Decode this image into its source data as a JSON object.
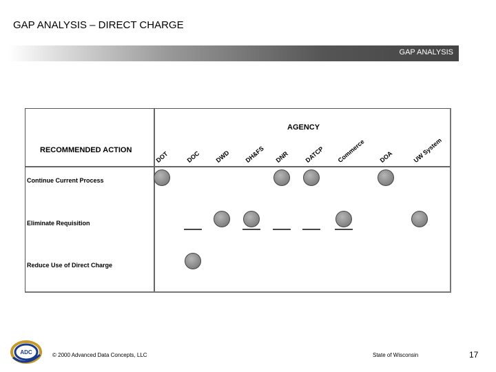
{
  "header": {
    "title": "GAP ANALYSIS – DIRECT CHARGE"
  },
  "banner": {
    "label": "GAP ANALYSIS"
  },
  "matrix": {
    "agency_title": "AGENCY",
    "action_title": "RECOMMENDED ACTION",
    "agencies": [
      "DOT",
      "DOC",
      "DWD",
      "DH&FS",
      "DNR",
      "DATCP",
      "Commerce",
      "DOA",
      "UW System"
    ],
    "rows": [
      {
        "label": "Continue Current Process",
        "marks": [
          "dot",
          "",
          "",
          "",
          "dot",
          "dot",
          "",
          "dot",
          ""
        ]
      },
      {
        "label": "Eliminate Requisition",
        "marks": [
          "",
          "dash",
          "dot",
          "dot-dash",
          "dash",
          "dash",
          "dot-dash",
          "",
          "dot"
        ]
      },
      {
        "label": "Reduce Use of Direct Charge",
        "marks": [
          "",
          "dot",
          "",
          "",
          "",
          "",
          "",
          "",
          ""
        ]
      }
    ]
  },
  "footer": {
    "logo_text": "ADC",
    "copyright": "© 2000 Advanced Data Concepts, LLC",
    "state": "State of Wisconsin",
    "page_number": "17"
  },
  "colors": {
    "dot_fill": "#8a8a8a",
    "banner_dark": "#444444"
  }
}
